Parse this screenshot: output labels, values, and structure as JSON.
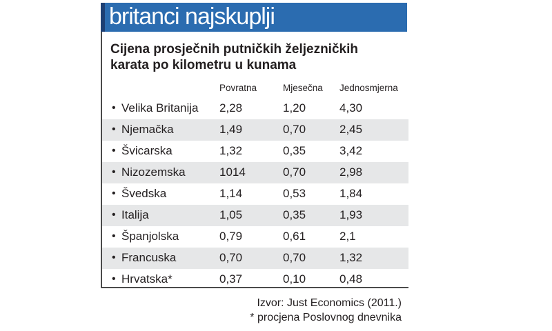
{
  "header": {
    "title": "britanci najskuplji"
  },
  "subtitle": "Cijena prosječnih putničkih željezničkih karata po kilometru u kunama",
  "colors": {
    "header_bar": "#2b6cb0",
    "row_shade": "#e6e7e8",
    "text": "#231f20"
  },
  "chart_data": {
    "type": "table",
    "title": "Cijena prosječnih putničkih željezničkih karata po kilometru u kunama",
    "columns": [
      "Povratna",
      "Mjesečna",
      "Jednosmjerna"
    ],
    "bullet": "•",
    "rows": [
      {
        "country": "Velika Britanija",
        "values": [
          "2,28",
          "1,20",
          "4,30"
        ]
      },
      {
        "country": "Njemačka",
        "values": [
          "1,49",
          "0,70",
          "2,45"
        ]
      },
      {
        "country": "Švicarska",
        "values": [
          "1,32",
          "0,35",
          "3,42"
        ]
      },
      {
        "country": "Nizozemska",
        "values": [
          "1014",
          "0,70",
          "2,98"
        ]
      },
      {
        "country": "Švedska",
        "values": [
          "1,14",
          "0,53",
          "1,84"
        ]
      },
      {
        "country": "Italija",
        "values": [
          "1,05",
          "0,35",
          "1,93"
        ]
      },
      {
        "country": "Španjolska",
        "values": [
          "0,79",
          "0,61",
          "2,1"
        ]
      },
      {
        "country": "Francuska",
        "values": [
          "0,70",
          "0,70",
          "1,32"
        ]
      },
      {
        "country": "Hrvatska*",
        "values": [
          "0,37",
          "0,10",
          "0,48"
        ]
      }
    ]
  },
  "footer": {
    "source": "Izvor: Just Economics (2011.)",
    "note": "* procjena Poslovnog dnevnika"
  }
}
